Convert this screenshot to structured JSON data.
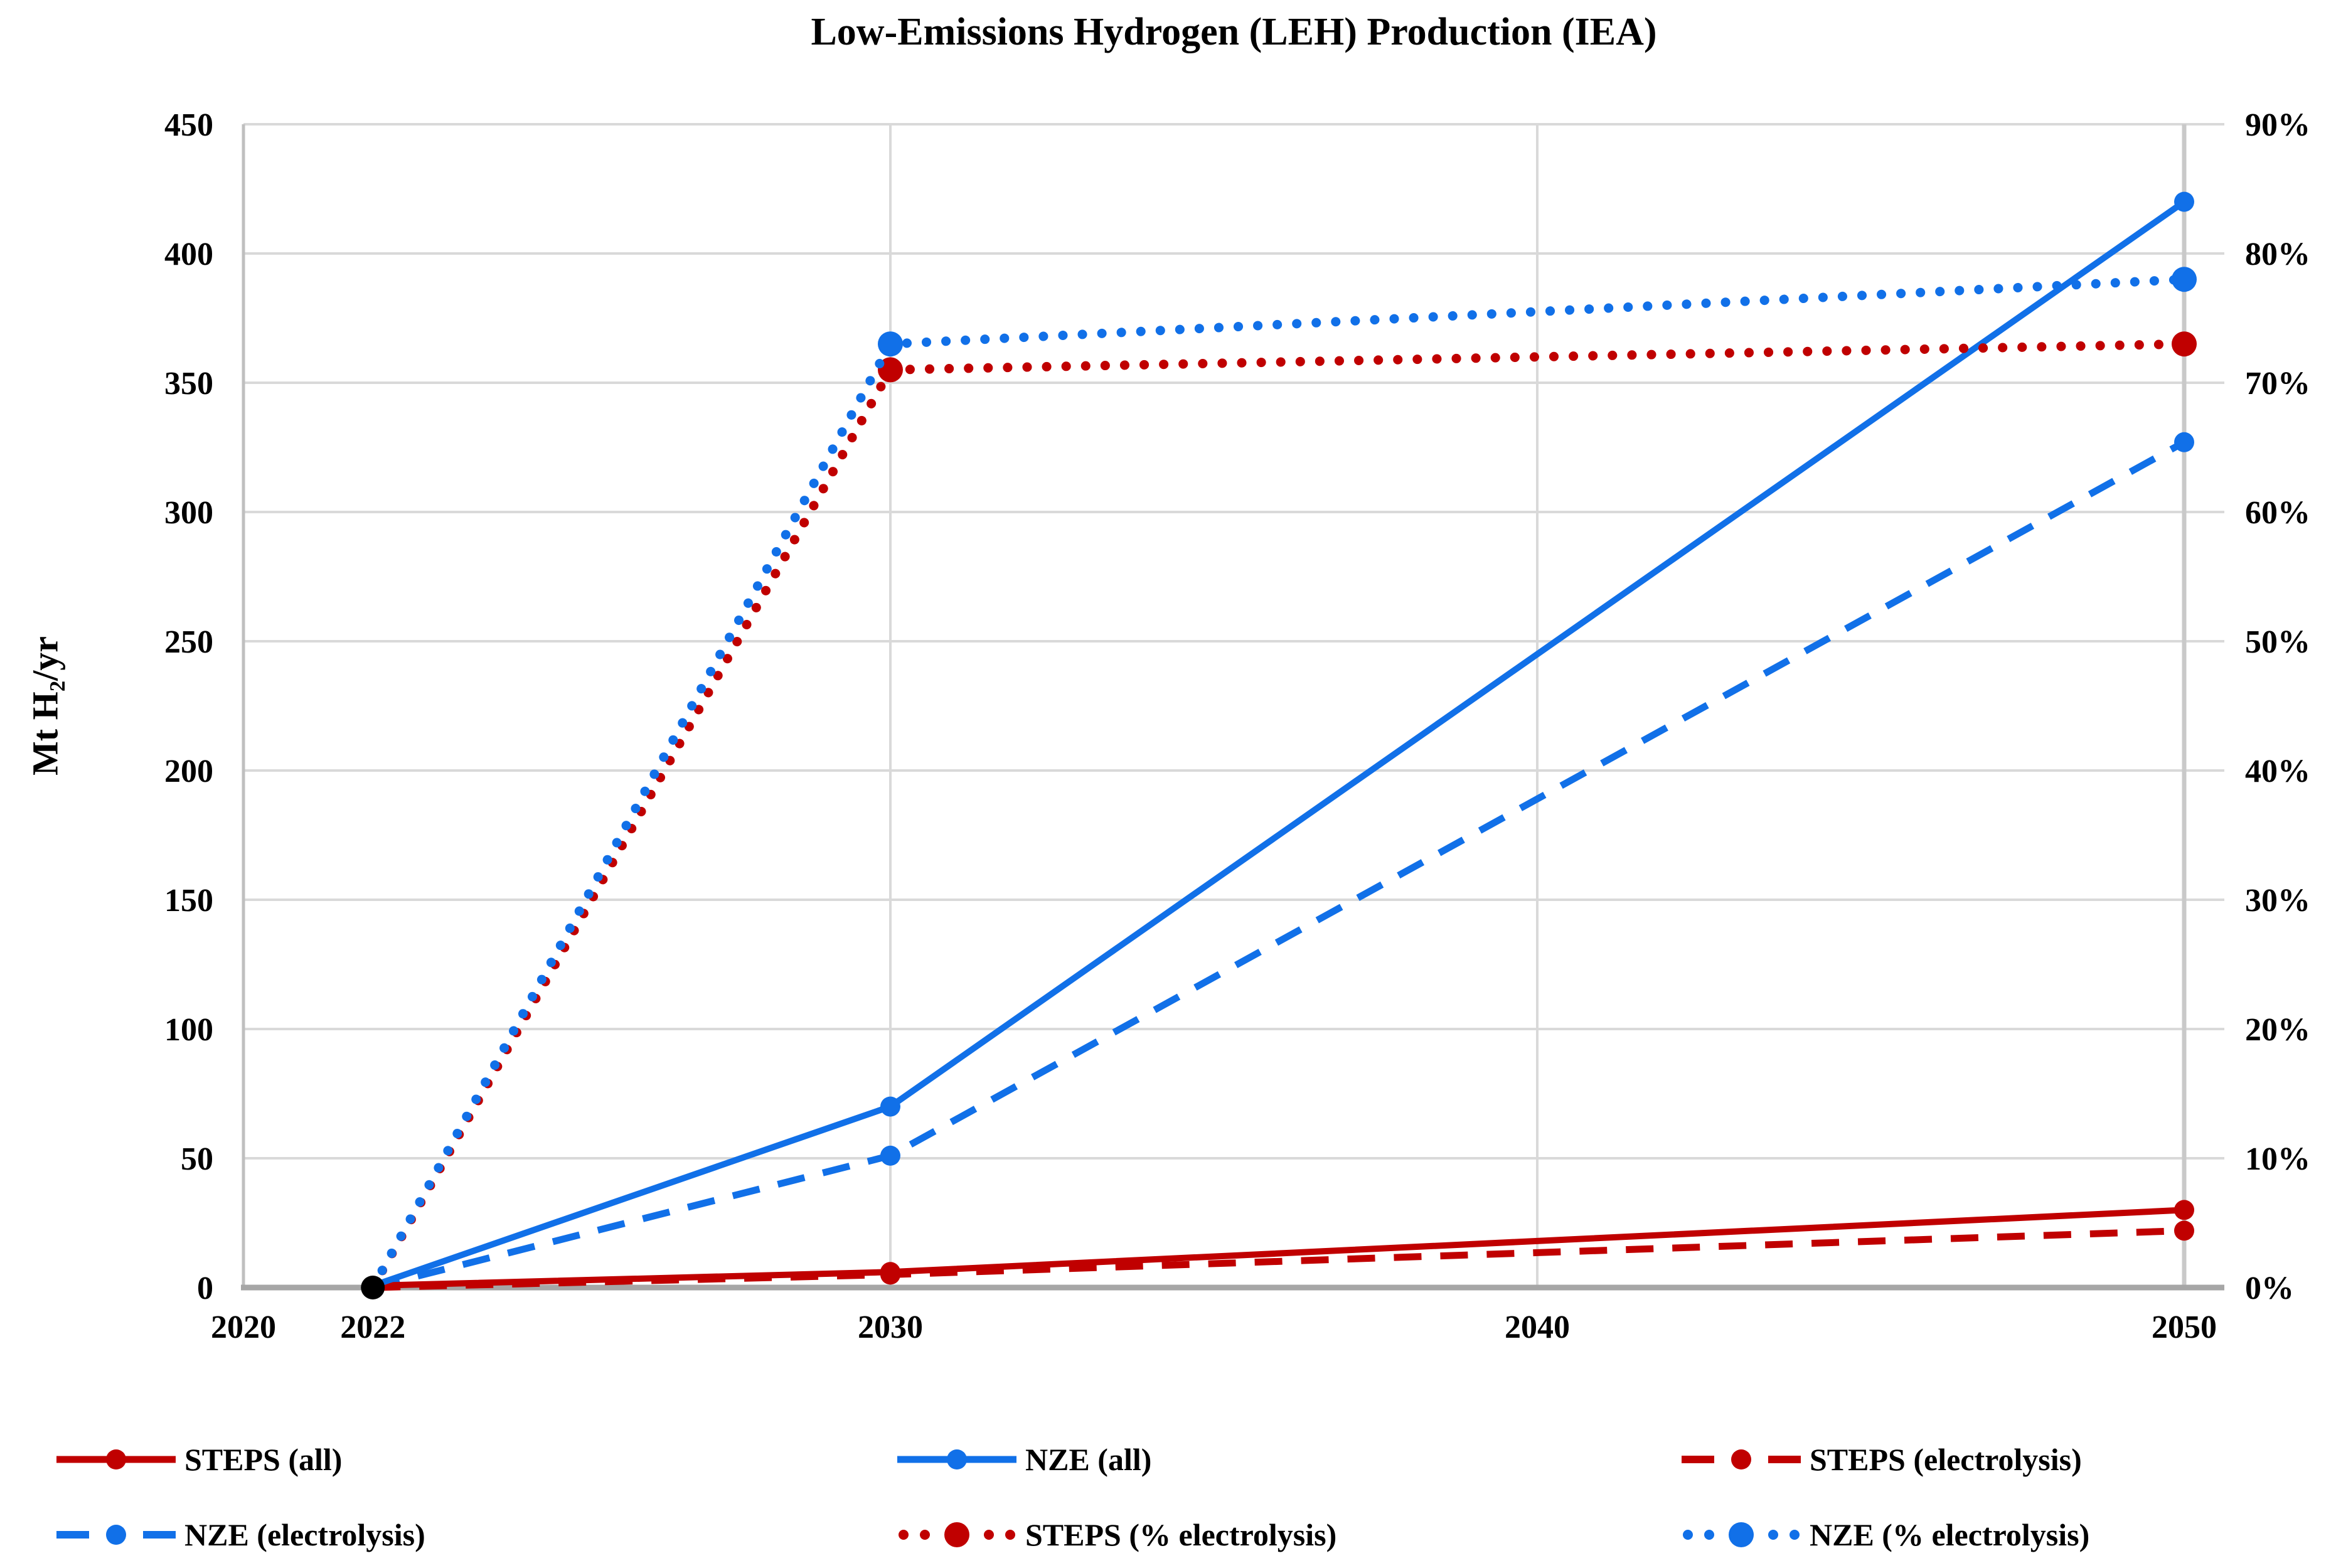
{
  "title": "Low-Emissions Hydrogen (LEH) Production (IEA)",
  "colors": {
    "steps_red": "#C00000",
    "nze_blue": "#1170E8",
    "base_point_black": "#000000",
    "gridline": "#D9D9D9",
    "axis_line": "#A6A6A6",
    "left_axis_line": "#BFBFBF",
    "year2050_line": "#C9C9C9"
  },
  "chart_data": {
    "type": "line",
    "title": "Low-Emissions Hydrogen (LEH) Production (IEA)",
    "x": [
      2022,
      2030,
      2050
    ],
    "x_axis": {
      "ticks": [
        "2020",
        "2022",
        "2030",
        "2040",
        "2050"
      ],
      "range": [
        2019.4,
        2050.6
      ],
      "gridline_years": [
        2030,
        2040,
        2050
      ]
    },
    "y_left": {
      "label": "Mt H₂/yr",
      "ticks": [
        "0",
        "50",
        "100",
        "150",
        "200",
        "250",
        "300",
        "350",
        "400",
        "450"
      ],
      "range": [
        0,
        450
      ]
    },
    "y_right": {
      "ticks": [
        "0%",
        "10%",
        "20%",
        "30%",
        "40%",
        "50%",
        "60%",
        "70%",
        "80%",
        "90%"
      ],
      "range": [
        0,
        90
      ]
    },
    "grid": true,
    "legend_position": "bottom",
    "base_point": {
      "x": 2022,
      "value": 0,
      "color": "#000000"
    },
    "series": [
      {
        "name": "STEPS (all)",
        "color": "#C00000",
        "line": "solid",
        "axis": "left",
        "values": [
          0.7,
          6,
          30
        ]
      },
      {
        "name": "NZE (all)",
        "color": "#1170E8",
        "line": "solid",
        "axis": "left",
        "values": [
          0.7,
          70,
          420
        ]
      },
      {
        "name": "STEPS (electrolysis)",
        "color": "#C00000",
        "line": "dashed",
        "axis": "left",
        "values": [
          0,
          5,
          22
        ]
      },
      {
        "name": "NZE (electrolysis)",
        "color": "#1170E8",
        "line": "dashed",
        "axis": "left",
        "values": [
          0,
          51,
          327
        ]
      },
      {
        "name": "STEPS (% electrolysis)",
        "color": "#C00000",
        "line": "dotted",
        "axis": "right",
        "values": [
          0,
          71,
          73
        ]
      },
      {
        "name": "NZE (% electrolysis)",
        "color": "#1170E8",
        "line": "dotted",
        "axis": "right",
        "values": [
          0,
          73,
          78
        ]
      }
    ]
  },
  "legend": {
    "rows": [
      [
        "STEPS (all)",
        "NZE (all)",
        "STEPS (electrolysis)"
      ],
      [
        "NZE (electrolysis)",
        "STEPS (% electrolysis)",
        "NZE (% electrolysis)"
      ]
    ]
  }
}
